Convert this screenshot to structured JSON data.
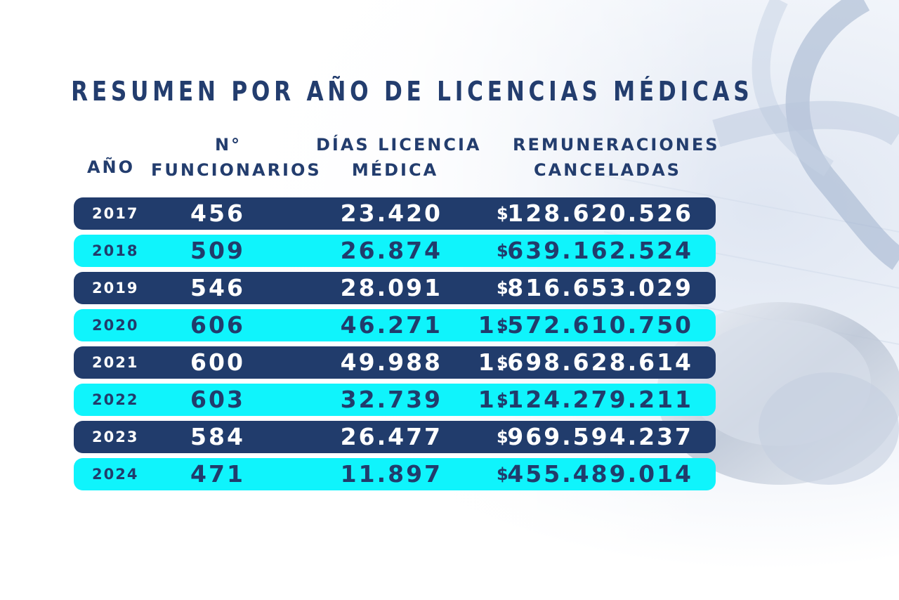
{
  "title": "RESUMEN POR AÑO DE LICENCIAS MÉDICAS",
  "headers": {
    "year": "AÑO",
    "func_line1": "N°",
    "func_line2": "FUNCIONARIOS",
    "dias_line1": "DÍAS LICENCIA",
    "dias_line2": "MÉDICA",
    "rem_line1": "REMUNERACIONES",
    "rem_line2": "CANCELADAS"
  },
  "currency_symbol": "$",
  "rows": [
    {
      "year": "2017",
      "funcionarios": "456",
      "dias": "23.420",
      "remuneraciones": "128.620.526",
      "style": "dark"
    },
    {
      "year": "2018",
      "funcionarios": "509",
      "dias": "26.874",
      "remuneraciones": "639.162.524",
      "style": "light"
    },
    {
      "year": "2019",
      "funcionarios": "546",
      "dias": "28.091",
      "remuneraciones": "816.653.029",
      "style": "dark"
    },
    {
      "year": "2020",
      "funcionarios": "606",
      "dias": "46.271",
      "remuneraciones": "1.572.610.750",
      "style": "light"
    },
    {
      "year": "2021",
      "funcionarios": "600",
      "dias": "49.988",
      "remuneraciones": "1.698.628.614",
      "style": "dark"
    },
    {
      "year": "2022",
      "funcionarios": "603",
      "dias": "32.739",
      "remuneraciones": "1.124.279.211",
      "style": "light"
    },
    {
      "year": "2023",
      "funcionarios": "584",
      "dias": "26.477",
      "remuneraciones": "969.594.237",
      "style": "dark"
    },
    {
      "year": "2024",
      "funcionarios": "471",
      "dias": "11.897",
      "remuneraciones": "455.489.014",
      "style": "light"
    }
  ],
  "colors": {
    "navy": "#213c6c",
    "cyan": "#0ff4fc",
    "title": "#233d6e"
  },
  "background_image": "stethoscope-photo"
}
